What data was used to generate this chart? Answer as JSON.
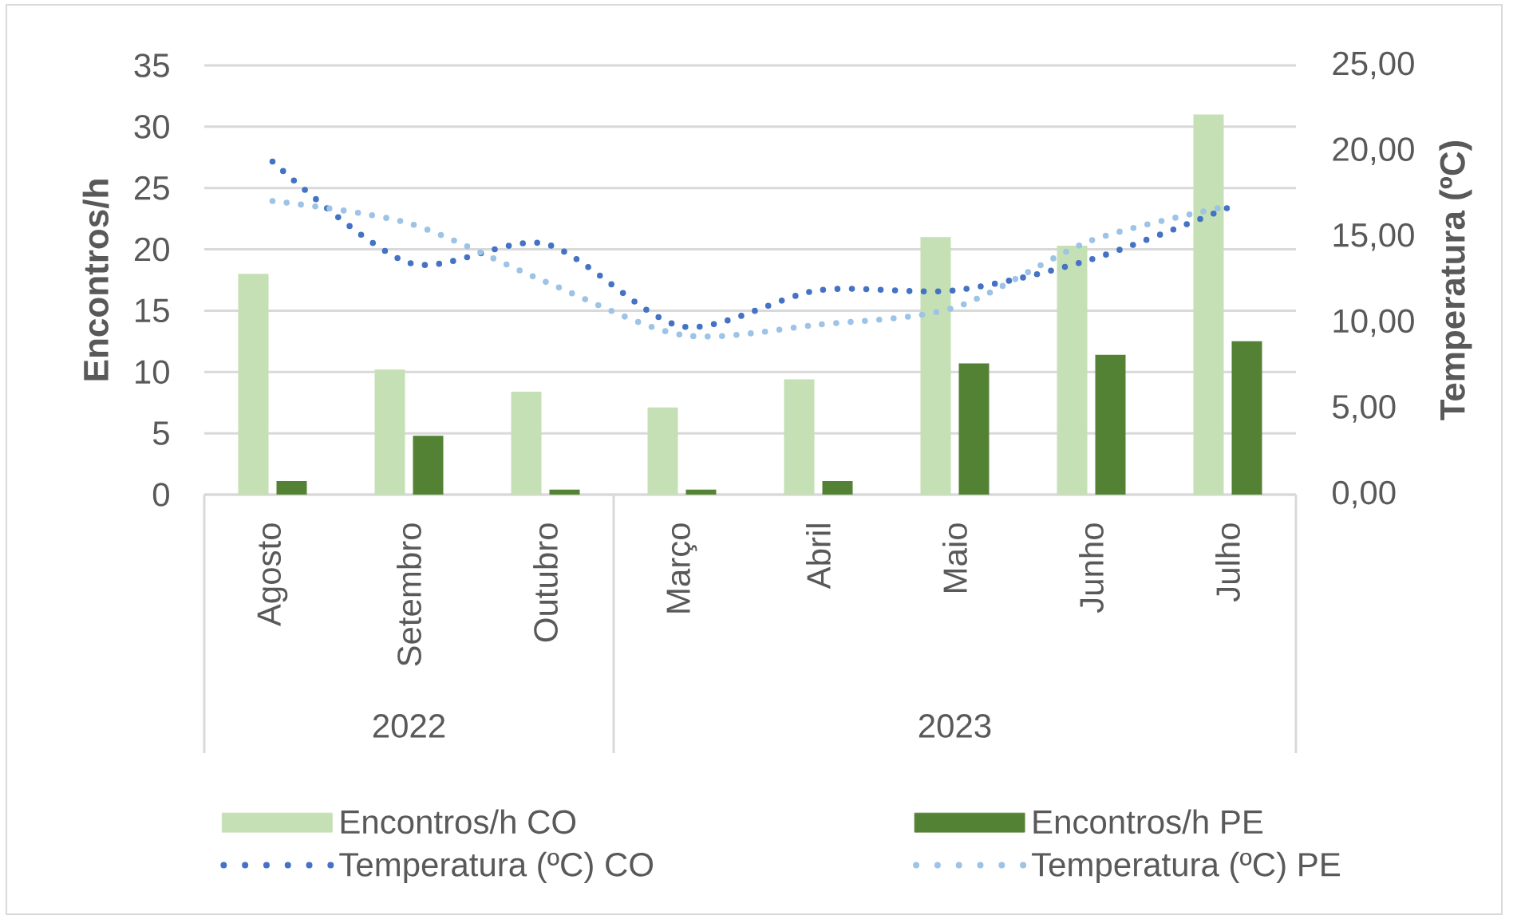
{
  "chart_data": {
    "type": "bar",
    "ylabel": "Encontros/h",
    "y2label": "Temperatura (ºC)",
    "categories": [
      "Agosto",
      "Setembro",
      "Outubro",
      "Março",
      "Abril",
      "Maio",
      "Junho",
      "Julho"
    ],
    "series": [
      {
        "name": "Encontros/h CO",
        "color": "#c5e0b4",
        "values": [
          18,
          10.2,
          8.4,
          7.1,
          9.4,
          21,
          20.3,
          31
        ]
      },
      {
        "name": "Encontros/h PE",
        "color": "#548235",
        "values": [
          1.1,
          4.8,
          0.4,
          0.4,
          1.1,
          10.7,
          11.4,
          12.5
        ]
      },
      {
        "name": "Temperatura (ºC) CO",
        "type": "line",
        "axis": "y2",
        "line_style": "dotted",
        "color": "#4472c4",
        "values": [
          19.4,
          13.5,
          14.6,
          9.8,
          11.9,
          11.9,
          13.7,
          16.7
        ]
      },
      {
        "name": "Temperatura (ºC) PE",
        "type": "line",
        "axis": "y2",
        "line_style": "dotted",
        "color": "#9dc3e6",
        "values": [
          17.1,
          15.8,
          12.4,
          9.3,
          9.9,
          10.9,
          14.8,
          16.8
        ]
      }
    ],
    "ylim": [
      0,
      35
    ],
    "yticks": [
      0,
      5,
      10,
      15,
      20,
      25,
      30,
      35
    ],
    "y2lim": [
      0,
      25
    ],
    "y2ticks": [
      {
        "value": 0,
        "label": "0,00"
      },
      {
        "value": 5,
        "label": "5,00"
      },
      {
        "value": 10,
        "label": "10,00"
      },
      {
        "value": 15,
        "label": "15,00"
      },
      {
        "value": 20,
        "label": "20,00"
      },
      {
        "value": 25,
        "label": "25,00"
      }
    ],
    "grid": "y",
    "legend": "bottom",
    "annotations": [
      "2022",
      "2023"
    ]
  }
}
